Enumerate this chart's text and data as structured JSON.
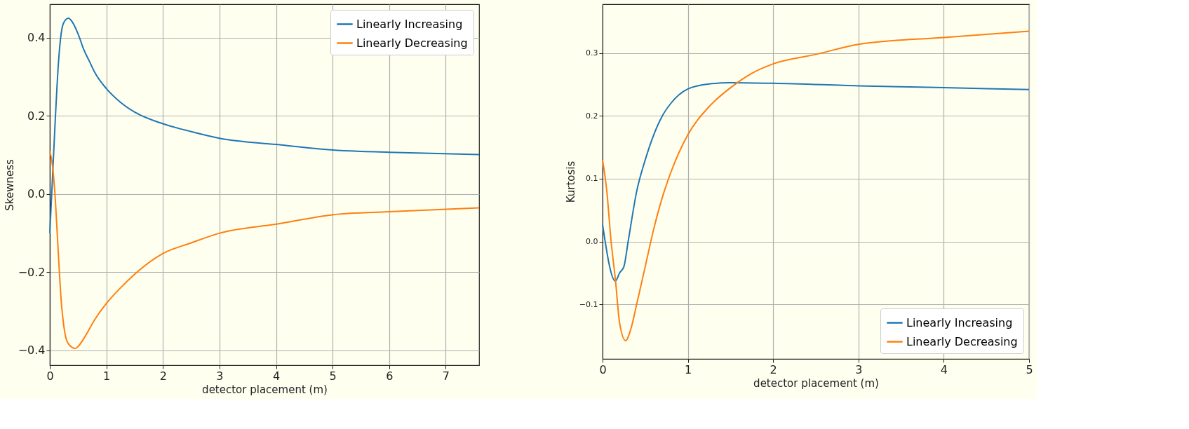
{
  "chart_data": [
    {
      "type": "line",
      "xlabel": "detector placement (m)",
      "ylabel": "Skewness",
      "xlim": [
        0,
        7.59
      ],
      "ylim": [
        -0.438,
        0.486
      ],
      "xticks": [
        0,
        1,
        2,
        3,
        4,
        5,
        6,
        7
      ],
      "yticks": [
        {
          "value": -0.4,
          "label": "−0.4"
        },
        {
          "value": -0.2,
          "label": "−0.2"
        },
        {
          "value": 0,
          "label": "0.0"
        },
        {
          "value": 0.2,
          "label": "0.2"
        },
        {
          "value": 0.4,
          "label": "0.4"
        }
      ],
      "grid": true,
      "legend": "top right",
      "series": [
        {
          "name": "Linearly Increasing",
          "color": "#1f77b4",
          "x": [
            0,
            0.05,
            0.1,
            0.15,
            0.2,
            0.25,
            0.33,
            0.4,
            0.5,
            0.6,
            0.7,
            0.8,
            1.0,
            1.25,
            1.5,
            2,
            2.5,
            3,
            4,
            5,
            6,
            7.59
          ],
          "values": [
            -0.1,
            0.05,
            0.2,
            0.33,
            0.41,
            0.44,
            0.45,
            0.44,
            0.41,
            0.37,
            0.34,
            0.31,
            0.27,
            0.235,
            0.21,
            0.18,
            0.16,
            0.143,
            0.127,
            0.113,
            0.107,
            0.101
          ]
        },
        {
          "name": "Linearly Decreasing",
          "color": "#ff7f0e",
          "x": [
            0,
            0.05,
            0.1,
            0.15,
            0.2,
            0.25,
            0.3,
            0.4,
            0.45,
            0.5,
            0.6,
            0.8,
            1.0,
            1.25,
            1.5,
            2,
            2.5,
            3,
            4,
            5,
            6,
            7.59
          ],
          "values": [
            0.11,
            0.07,
            -0.02,
            -0.15,
            -0.27,
            -0.34,
            -0.375,
            -0.393,
            -0.395,
            -0.39,
            -0.37,
            -0.32,
            -0.28,
            -0.24,
            -0.205,
            -0.152,
            -0.125,
            -0.1,
            -0.077,
            -0.053,
            -0.045,
            -0.035
          ]
        }
      ]
    },
    {
      "type": "line",
      "xlabel": "detector placement (m)",
      "ylabel": "Kurtosis",
      "xlim": [
        0,
        5
      ],
      "ylim": [
        -0.187,
        0.378
      ],
      "xticks": [
        0,
        1,
        2,
        3,
        4,
        5
      ],
      "yticks": [
        {
          "value": -0.1,
          "label": "−0.1"
        },
        {
          "value": 0,
          "label": "0.0"
        },
        {
          "value": 0.1,
          "label": "0.1"
        },
        {
          "value": 0.2,
          "label": "0.2"
        },
        {
          "value": 0.3,
          "label": "0.3"
        }
      ],
      "grid": true,
      "legend": "bottom right",
      "series": [
        {
          "name": "Linearly Increasing",
          "color": "#1f77b4",
          "x": [
            0,
            0.15,
            0.2,
            0.25,
            0.3,
            0.4,
            0.5,
            0.6,
            0.7,
            0.8,
            1.0,
            1.25,
            1.5,
            2,
            3,
            4,
            5
          ],
          "values": [
            0.027,
            -0.063,
            -0.05,
            -0.04,
            0.0,
            0.08,
            0.13,
            0.17,
            0.2,
            0.22,
            0.243,
            0.251,
            0.253,
            0.252,
            0.248,
            0.245,
            0.242
          ]
        },
        {
          "name": "Linearly Decreasing",
          "color": "#ff7f0e",
          "x": [
            0,
            0.05,
            0.1,
            0.15,
            0.2,
            0.27,
            0.33,
            0.4,
            0.5,
            0.6,
            0.7,
            0.8,
            1.0,
            1.25,
            1.5,
            1.75,
            2,
            2.5,
            3,
            4,
            5
          ],
          "values": [
            0.13,
            0.08,
            0.0,
            -0.06,
            -0.13,
            -0.158,
            -0.14,
            -0.1,
            -0.04,
            0.02,
            0.07,
            0.11,
            0.17,
            0.215,
            0.245,
            0.268,
            0.283,
            0.298,
            0.314,
            0.325,
            0.335
          ]
        }
      ]
    }
  ]
}
